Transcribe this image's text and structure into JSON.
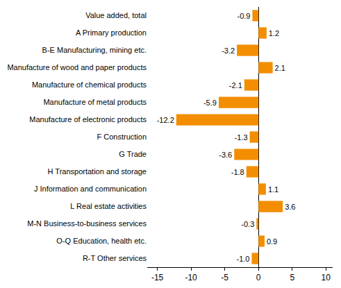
{
  "chart_data": {
    "type": "bar",
    "orientation": "horizontal",
    "categories": [
      "Value added, total",
      "A Primary production",
      "B-E Manufacturing, mining etc.",
      "Manufacture of wood and paper products",
      "Manufacture of chemical products",
      "Manufacture of metal products",
      "Manufacture of electronic products",
      "F Construction",
      "G Trade",
      "H Transportation and storage",
      "J Information and communication",
      "L Real estate activities",
      "M-N Business-to-business services",
      "O-Q Education, health etc.",
      "R-T Other services"
    ],
    "values": [
      -0.9,
      1.2,
      -3.2,
      2.1,
      -2.1,
      -5.9,
      -12.2,
      -1.3,
      -3.6,
      -1.8,
      1.1,
      3.6,
      -0.3,
      0.9,
      -1.0
    ],
    "value_labels": [
      "-0.9",
      "1.2",
      "-3.2",
      "2.1",
      "-2.1",
      "-5.9",
      "-12.2",
      "-1.3",
      "-3.6",
      "-1.8",
      "1.1",
      "3.6",
      "-0.3",
      "0.9",
      "-1.0"
    ],
    "color": "#f28e00",
    "xlim": [
      -16.5,
      11
    ],
    "xticks": [
      -15,
      -10,
      -5,
      0,
      5,
      10
    ],
    "grid": false,
    "data_labels": true
  }
}
